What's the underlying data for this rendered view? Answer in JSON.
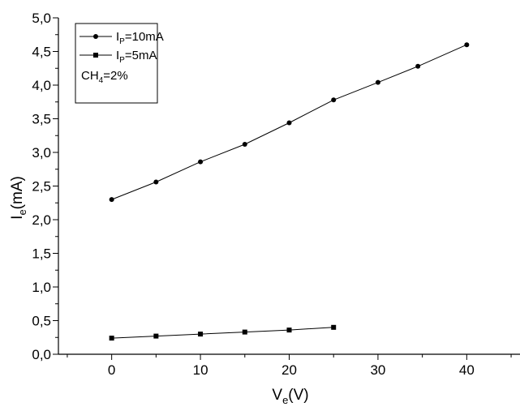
{
  "chart_data": {
    "type": "line",
    "x_label": {
      "main": "V",
      "sub": "e",
      "unit": "(V)"
    },
    "y_label": {
      "main": "I",
      "sub": "e",
      "unit": "(mA)"
    },
    "xlim": [
      -6,
      46
    ],
    "ylim": [
      0.0,
      5.0
    ],
    "x_ticks": [
      0,
      10,
      20,
      30,
      40
    ],
    "x_tick_labels": [
      "0",
      "10",
      "20",
      "30",
      "40"
    ],
    "y_ticks": [
      0.0,
      0.5,
      1.0,
      1.5,
      2.0,
      2.5,
      3.0,
      3.5,
      4.0,
      4.5,
      5.0
    ],
    "y_tick_labels": [
      "0,0",
      "0,5",
      "1,0",
      "1,5",
      "2,0",
      "2,5",
      "3,0",
      "3,5",
      "4,0",
      "4,5",
      "5,0"
    ],
    "grid": false,
    "legend": {
      "placement": "top-left",
      "note": {
        "main": "CH",
        "sub": "4",
        "rest": "=2%"
      }
    },
    "series": [
      {
        "label_main": "I",
        "label_sub": "P",
        "label_rest": "=10mA",
        "marker": "circle",
        "x": [
          0,
          5,
          10,
          15,
          20,
          25,
          30,
          34.5,
          40
        ],
        "y": [
          2.3,
          2.56,
          2.86,
          3.12,
          3.44,
          3.78,
          4.04,
          4.28,
          4.6
        ]
      },
      {
        "label_main": "I",
        "label_sub": "P",
        "label_rest": "=5mA",
        "marker": "square",
        "x": [
          0,
          5,
          10,
          15,
          20,
          25
        ],
        "y": [
          0.24,
          0.27,
          0.3,
          0.33,
          0.36,
          0.4
        ]
      }
    ]
  }
}
